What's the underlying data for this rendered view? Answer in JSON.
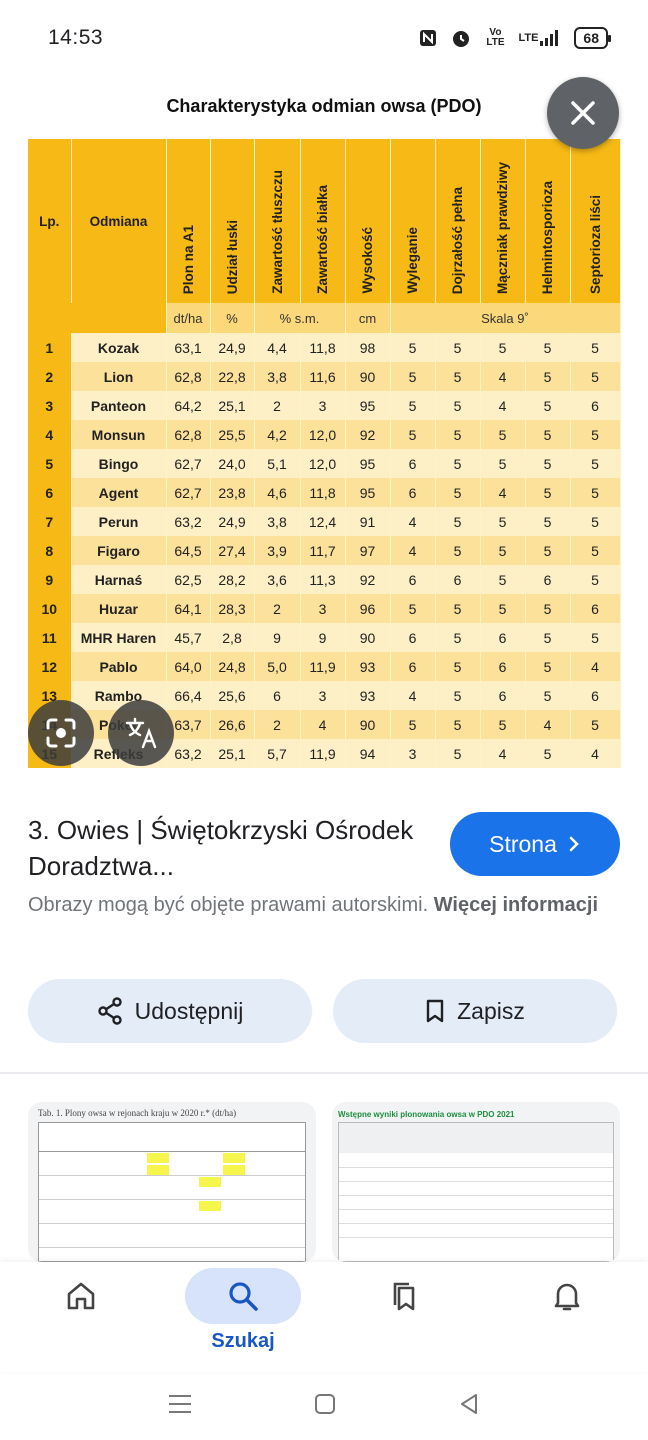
{
  "status_bar": {
    "time": "14:53",
    "icons": [
      "nfc-icon",
      "alarm-icon",
      "volte-icon",
      "lte-signal-icon"
    ],
    "volte_label": "Vo LTE",
    "lte_label": "LTE",
    "battery": "68"
  },
  "table": {
    "title": "Charakterystyka odmian owsa (PDO)",
    "headers": {
      "lp": "Lp.",
      "name": "Odmiana",
      "cols": [
        "Plon na A1",
        "Udział łuski",
        "Zawartość tłuszczu",
        "Zawartość białka",
        "Wysokość",
        "Wyleganie",
        "Dojrzałość pełna",
        "Mączniak prawdziwy",
        "Helmintosporioza",
        "Septorioza liści"
      ]
    },
    "units": {
      "plon": "dt/ha",
      "luska": "%",
      "skladniki": "% s.m.",
      "wysokosc": "cm",
      "skala": "Skala 9˚"
    },
    "rows": [
      [
        "1",
        "Kozak",
        "63,1",
        "24,9",
        "4,4",
        "11,8",
        "98",
        "5",
        "5",
        "5",
        "5",
        "5"
      ],
      [
        "2",
        "Lion",
        "62,8",
        "22,8",
        "3,8",
        "11,6",
        "90",
        "5",
        "5",
        "4",
        "5",
        "5"
      ],
      [
        "3",
        "Panteon",
        "64,2",
        "25,1",
        "2",
        "3",
        "95",
        "5",
        "5",
        "4",
        "5",
        "6"
      ],
      [
        "4",
        "Monsun",
        "62,8",
        "25,5",
        "4,2",
        "12,0",
        "92",
        "5",
        "5",
        "5",
        "5",
        "5"
      ],
      [
        "5",
        "Bingo",
        "62,7",
        "24,0",
        "5,1",
        "12,0",
        "95",
        "6",
        "5",
        "5",
        "5",
        "5"
      ],
      [
        "6",
        "Agent",
        "62,7",
        "23,8",
        "4,6",
        "11,8",
        "95",
        "6",
        "5",
        "4",
        "5",
        "5"
      ],
      [
        "7",
        "Perun",
        "63,2",
        "24,9",
        "3,8",
        "12,4",
        "91",
        "4",
        "5",
        "5",
        "5",
        "5"
      ],
      [
        "8",
        "Figaro",
        "64,5",
        "27,4",
        "3,9",
        "11,7",
        "97",
        "4",
        "5",
        "5",
        "5",
        "5"
      ],
      [
        "9",
        "Harnaś",
        "62,5",
        "28,2",
        "3,6",
        "11,3",
        "92",
        "6",
        "6",
        "5",
        "6",
        "5"
      ],
      [
        "10",
        "Huzar",
        "64,1",
        "28,3",
        "2",
        "3",
        "96",
        "5",
        "5",
        "5",
        "5",
        "6"
      ],
      [
        "11",
        "MHR Haren",
        "45,7",
        "2,8",
        "9",
        "9",
        "90",
        "6",
        "5",
        "6",
        "5",
        "5"
      ],
      [
        "12",
        "Pablo",
        "64,0",
        "24,8",
        "5,0",
        "11,9",
        "93",
        "6",
        "5",
        "6",
        "5",
        "4"
      ],
      [
        "13",
        "Rambo",
        "66,4",
        "25,6",
        "6",
        "3",
        "93",
        "4",
        "5",
        "6",
        "5",
        "6"
      ],
      [
        "14",
        "Poker",
        "63,7",
        "26,6",
        "2",
        "4",
        "90",
        "5",
        "5",
        "5",
        "4",
        "5"
      ],
      [
        "15",
        "Refleks",
        "63,2",
        "25,1",
        "5,7",
        "11,9",
        "94",
        "3",
        "5",
        "4",
        "5",
        "4"
      ]
    ]
  },
  "result": {
    "title": "3. Owies | Świętokrzyski Ośrodek Doradztwa...",
    "visit_label": "Strona",
    "copyright_text": "Obrazy mogą być objęte prawami autorskimi.",
    "more_info": "Więcej informacji",
    "share_label": "Udostępnij",
    "save_label": "Zapisz"
  },
  "thumbs": {
    "thumb1_caption": "Tab. 1. Plony owsa w rejonach kraju w 2020 r.* (dt/ha)",
    "thumb2_caption": "Wstępne wyniki plonowania owsa w PDO 2021"
  },
  "nav": {
    "home_icon": "home-icon",
    "search_label": "Szukaj",
    "saved_icon": "collections-icon",
    "notif_icon": "bell-icon"
  },
  "colors": {
    "accent": "#1a73e8",
    "header_yellow": "#f6b915",
    "row_light": "#fdefc6",
    "row_dark": "#fbe19a"
  }
}
